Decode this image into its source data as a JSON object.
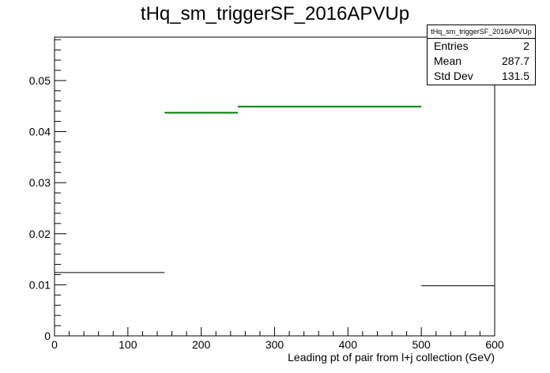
{
  "chart_data": {
    "type": "histogram",
    "title": "tHq_sm_triggerSF_2016APVUp",
    "xlabel": "Leading pt of pair from l+j collection (GeV)",
    "ylabel": "",
    "xlim": [
      0,
      600
    ],
    "ylim": [
      0,
      0.0585
    ],
    "xticks": [
      0,
      100,
      200,
      300,
      400,
      500,
      600
    ],
    "yticks": [
      0,
      0.01,
      0.02,
      0.03,
      0.04,
      0.05
    ],
    "ytick_labels": [
      "0",
      "0.01",
      "0.02",
      "0.03",
      "0.04",
      "0.05"
    ],
    "bins": [
      {
        "x0": 0,
        "x1": 150,
        "value": 0.0124,
        "color": "#000000"
      },
      {
        "x0": 150,
        "x1": 250,
        "value": 0.0437,
        "color": "#008000"
      },
      {
        "x0": 250,
        "x1": 500,
        "value": 0.0449,
        "color": "#008000"
      },
      {
        "x0": 500,
        "x1": 600,
        "value": 0.0098,
        "color": "#000000"
      }
    ],
    "stats": {
      "name": "tHq_sm_triggerSF_2016APVUp",
      "entries_label": "Entries",
      "entries": "2",
      "mean_label": "Mean",
      "mean": "287.7",
      "stddev_label": "Std Dev",
      "stddev": "131.5"
    }
  }
}
